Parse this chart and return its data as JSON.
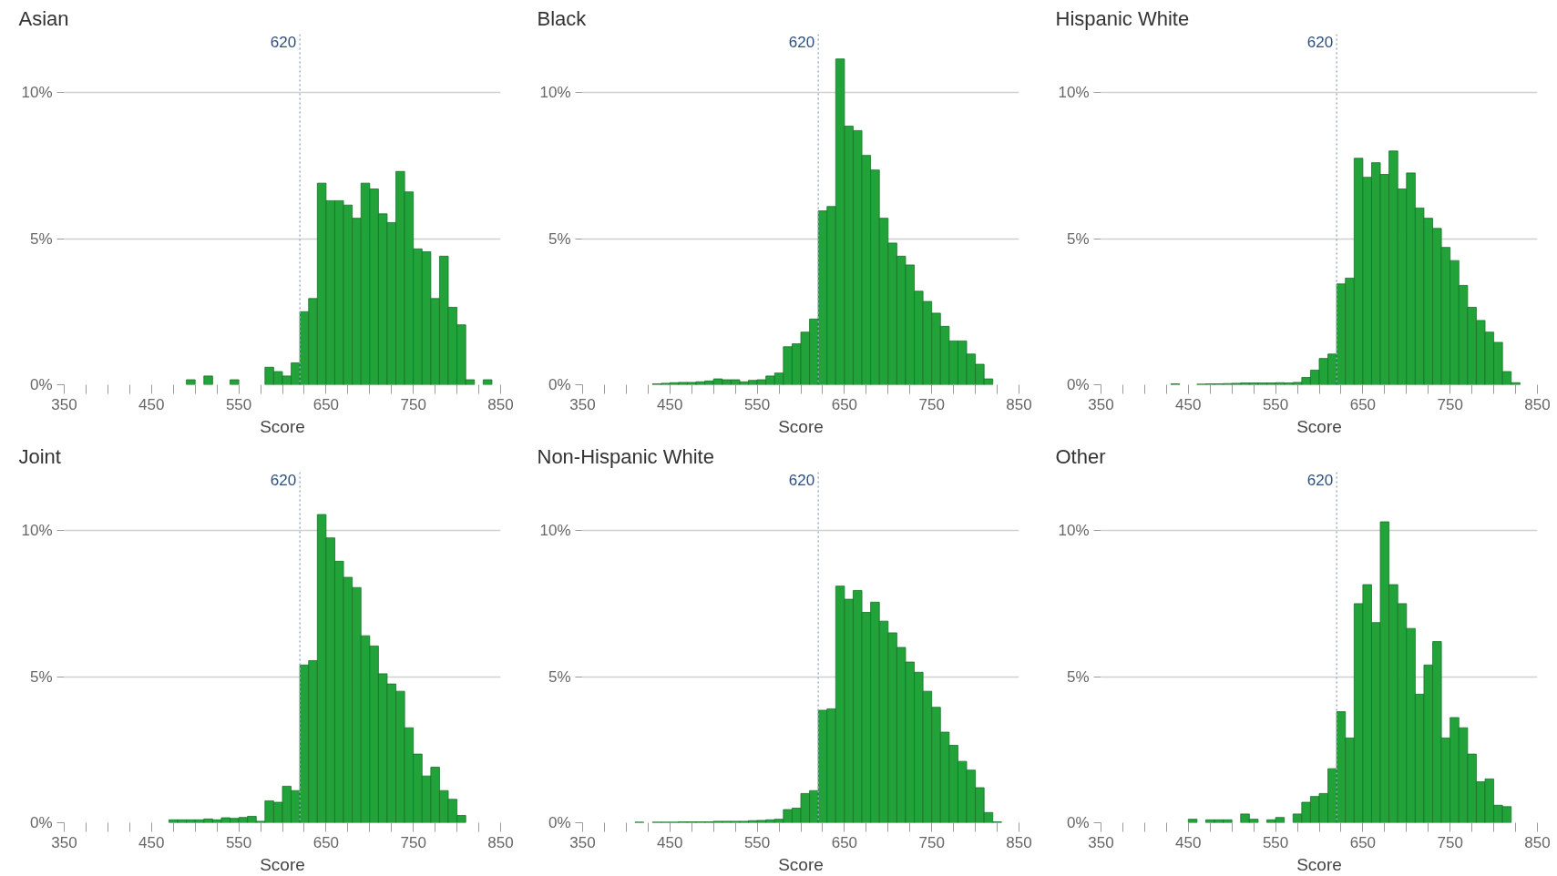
{
  "chart_data": [
    {
      "type": "histogram",
      "title": "Asian",
      "xlabel": "Score",
      "color": "#22a33a",
      "bins": [
        350,
        360,
        370,
        380,
        390,
        400,
        410,
        420,
        430,
        440,
        450,
        460,
        470,
        480,
        490,
        500,
        510,
        520,
        530,
        540,
        550,
        560,
        570,
        580,
        590,
        600,
        610,
        620,
        630,
        640,
        650,
        660,
        670,
        680,
        690,
        700,
        710,
        720,
        730,
        740,
        750,
        760,
        770,
        780,
        790,
        800,
        810,
        820,
        830,
        840,
        850
      ],
      "values": [
        0,
        0,
        0,
        0,
        0,
        0,
        0,
        0,
        0,
        0,
        0,
        0,
        0,
        0,
        0.17,
        0,
        0.3,
        0,
        0,
        0.17,
        0,
        0,
        0,
        0.6,
        0.45,
        0.3,
        0.75,
        2.5,
        2.95,
        6.9,
        6.3,
        6.3,
        6.15,
        5.7,
        6.9,
        6.7,
        5.85,
        5.55,
        7.3,
        6.6,
        4.65,
        4.55,
        2.95,
        4.4,
        2.65,
        2.05,
        0.17,
        0,
        0.17,
        0
      ],
      "xlim": [
        350,
        850
      ],
      "xticks": [
        350,
        {
          "value": 375,
          "label": null
        },
        {
          "value": 400,
          "label": null
        },
        {
          "value": 425,
          "label": null
        },
        450,
        {
          "value": 475,
          "label": null
        },
        {
          "value": 500,
          "label": null
        },
        {
          "value": 525,
          "label": null
        },
        550,
        {
          "value": 575,
          "label": null
        },
        {
          "value": 600,
          "label": null
        },
        {
          "value": 625,
          "label": null
        },
        650,
        {
          "value": 675,
          "label": null
        },
        {
          "value": 700,
          "label": null
        },
        {
          "value": 725,
          "label": null
        },
        750,
        {
          "value": 775,
          "label": null
        },
        {
          "value": 800,
          "label": null
        },
        {
          "value": 825,
          "label": null
        },
        850
      ],
      "ylim": [
        0,
        12
      ],
      "yticks": [
        {
          "value": 0,
          "label": "0%"
        },
        {
          "value": 5,
          "label": "5%"
        },
        {
          "value": 10,
          "label": "10%"
        }
      ],
      "grid": "y",
      "ref_lines": [
        {
          "axis": "x",
          "value": 620,
          "label": "620",
          "color": "#9aaccc",
          "line_style": "dotted"
        }
      ]
    },
    {
      "type": "histogram",
      "title": "Black",
      "xlabel": "Score",
      "color": "#22a33a",
      "bins": [
        350,
        360,
        370,
        380,
        390,
        400,
        410,
        420,
        430,
        440,
        450,
        460,
        470,
        480,
        490,
        500,
        510,
        520,
        530,
        540,
        550,
        560,
        570,
        580,
        590,
        600,
        610,
        620,
        630,
        640,
        650,
        660,
        670,
        680,
        690,
        700,
        710,
        720,
        730,
        740,
        750,
        760,
        770,
        780,
        790,
        800,
        810,
        820,
        830,
        840,
        850
      ],
      "values": [
        0,
        0,
        0,
        0,
        0,
        0,
        0,
        0,
        0.03,
        0.05,
        0.07,
        0.08,
        0.08,
        0.1,
        0.13,
        0.2,
        0.17,
        0.17,
        0.1,
        0.15,
        0.17,
        0.3,
        0.4,
        1.3,
        1.4,
        1.8,
        2.25,
        5.95,
        6.1,
        11.15,
        8.85,
        8.7,
        7.85,
        7.35,
        5.7,
        4.85,
        4.4,
        4.1,
        3.2,
        2.85,
        2.45,
        2.0,
        1.5,
        1.5,
        1.05,
        0.7,
        0.2,
        0,
        0,
        0
      ],
      "xlim": [
        350,
        850
      ],
      "xticks": [
        350,
        {
          "value": 375,
          "label": null
        },
        {
          "value": 400,
          "label": null
        },
        {
          "value": 425,
          "label": null
        },
        450,
        {
          "value": 475,
          "label": null
        },
        {
          "value": 500,
          "label": null
        },
        {
          "value": 525,
          "label": null
        },
        550,
        {
          "value": 575,
          "label": null
        },
        {
          "value": 600,
          "label": null
        },
        {
          "value": 625,
          "label": null
        },
        650,
        {
          "value": 675,
          "label": null
        },
        {
          "value": 700,
          "label": null
        },
        {
          "value": 725,
          "label": null
        },
        750,
        {
          "value": 775,
          "label": null
        },
        {
          "value": 800,
          "label": null
        },
        {
          "value": 825,
          "label": null
        },
        850
      ],
      "ylim": [
        0,
        12
      ],
      "yticks": [
        {
          "value": 0,
          "label": "0%"
        },
        {
          "value": 5,
          "label": "5%"
        },
        {
          "value": 10,
          "label": "10%"
        }
      ],
      "grid": "y",
      "ref_lines": [
        {
          "axis": "x",
          "value": 620,
          "label": "620",
          "color": "#9aaccc",
          "line_style": "dotted"
        }
      ]
    },
    {
      "type": "histogram",
      "title": "Hispanic White",
      "xlabel": "Score",
      "color": "#22a33a",
      "bins": [
        350,
        360,
        370,
        380,
        390,
        400,
        410,
        420,
        430,
        440,
        450,
        460,
        470,
        480,
        490,
        500,
        510,
        520,
        530,
        540,
        550,
        560,
        570,
        580,
        590,
        600,
        610,
        620,
        630,
        640,
        650,
        660,
        670,
        680,
        690,
        700,
        710,
        720,
        730,
        740,
        750,
        760,
        770,
        780,
        790,
        800,
        810,
        820,
        830,
        840,
        850
      ],
      "values": [
        0,
        0,
        0,
        0,
        0,
        0,
        0,
        0,
        0.03,
        0,
        0,
        0.02,
        0.03,
        0.03,
        0.04,
        0.05,
        0.06,
        0.06,
        0.06,
        0.06,
        0.07,
        0.06,
        0.08,
        0.25,
        0.5,
        0.9,
        1.05,
        3.45,
        3.65,
        7.75,
        7.1,
        7.6,
        7.2,
        8.0,
        6.7,
        7.25,
        6.05,
        5.7,
        5.35,
        4.7,
        4.25,
        3.4,
        2.65,
        2.2,
        1.8,
        1.45,
        0.45,
        0.07,
        0,
        0
      ],
      "xlim": [
        350,
        850
      ],
      "xticks": [
        350,
        {
          "value": 375,
          "label": null
        },
        {
          "value": 400,
          "label": null
        },
        {
          "value": 425,
          "label": null
        },
        450,
        {
          "value": 475,
          "label": null
        },
        {
          "value": 500,
          "label": null
        },
        {
          "value": 525,
          "label": null
        },
        550,
        {
          "value": 575,
          "label": null
        },
        {
          "value": 600,
          "label": null
        },
        {
          "value": 625,
          "label": null
        },
        650,
        {
          "value": 675,
          "label": null
        },
        {
          "value": 700,
          "label": null
        },
        {
          "value": 725,
          "label": null
        },
        750,
        {
          "value": 775,
          "label": null
        },
        {
          "value": 800,
          "label": null
        },
        {
          "value": 825,
          "label": null
        },
        850
      ],
      "ylim": [
        0,
        12
      ],
      "yticks": [
        {
          "value": 0,
          "label": "0%"
        },
        {
          "value": 5,
          "label": "5%"
        },
        {
          "value": 10,
          "label": "10%"
        }
      ],
      "grid": "y",
      "ref_lines": [
        {
          "axis": "x",
          "value": 620,
          "label": "620",
          "color": "#9aaccc",
          "line_style": "dotted"
        }
      ]
    },
    {
      "type": "histogram",
      "title": "Joint",
      "xlabel": "Score",
      "color": "#22a33a",
      "bins": [
        350,
        360,
        370,
        380,
        390,
        400,
        410,
        420,
        430,
        440,
        450,
        460,
        470,
        480,
        490,
        500,
        510,
        520,
        530,
        540,
        550,
        560,
        570,
        580,
        590,
        600,
        610,
        620,
        630,
        640,
        650,
        660,
        670,
        680,
        690,
        700,
        710,
        720,
        730,
        740,
        750,
        760,
        770,
        780,
        790,
        800,
        810,
        820,
        830,
        840,
        850
      ],
      "values": [
        0,
        0,
        0,
        0,
        0,
        0,
        0,
        0,
        0,
        0,
        0,
        0,
        0.1,
        0.1,
        0.1,
        0.1,
        0.13,
        0.1,
        0.17,
        0.15,
        0.18,
        0.22,
        0.05,
        0.75,
        0.7,
        1.25,
        1.1,
        5.4,
        5.55,
        10.55,
        9.75,
        8.95,
        8.4,
        8.05,
        6.4,
        6.05,
        5.1,
        4.75,
        4.5,
        3.25,
        2.35,
        1.6,
        1.9,
        1.1,
        0.8,
        0.25,
        0,
        0,
        0,
        0
      ],
      "xlim": [
        350,
        850
      ],
      "xticks": [
        350,
        {
          "value": 375,
          "label": null
        },
        {
          "value": 400,
          "label": null
        },
        {
          "value": 425,
          "label": null
        },
        450,
        {
          "value": 475,
          "label": null
        },
        {
          "value": 500,
          "label": null
        },
        {
          "value": 525,
          "label": null
        },
        550,
        {
          "value": 575,
          "label": null
        },
        {
          "value": 600,
          "label": null
        },
        {
          "value": 625,
          "label": null
        },
        650,
        {
          "value": 675,
          "label": null
        },
        {
          "value": 700,
          "label": null
        },
        {
          "value": 725,
          "label": null
        },
        750,
        {
          "value": 775,
          "label": null
        },
        {
          "value": 800,
          "label": null
        },
        {
          "value": 825,
          "label": null
        },
        850
      ],
      "ylim": [
        0,
        12
      ],
      "yticks": [
        {
          "value": 0,
          "label": "0%"
        },
        {
          "value": 5,
          "label": "5%"
        },
        {
          "value": 10,
          "label": "10%"
        }
      ],
      "grid": "y",
      "ref_lines": [
        {
          "axis": "x",
          "value": 620,
          "label": "620",
          "color": "#9aaccc",
          "line_style": "dotted"
        }
      ]
    },
    {
      "type": "histogram",
      "title": "Non-Hispanic White",
      "xlabel": "Score",
      "color": "#22a33a",
      "bins": [
        350,
        360,
        370,
        380,
        390,
        400,
        410,
        420,
        430,
        440,
        450,
        460,
        470,
        480,
        490,
        500,
        510,
        520,
        530,
        540,
        550,
        560,
        570,
        580,
        590,
        600,
        610,
        620,
        630,
        640,
        650,
        660,
        670,
        680,
        690,
        700,
        710,
        720,
        730,
        740,
        750,
        760,
        770,
        780,
        790,
        800,
        810,
        820,
        830,
        840,
        850
      ],
      "values": [
        0,
        0,
        0,
        0,
        0,
        0,
        0.02,
        0,
        0.02,
        0.02,
        0.02,
        0.03,
        0.03,
        0.03,
        0.03,
        0.05,
        0.05,
        0.05,
        0.05,
        0.07,
        0.08,
        0.1,
        0.12,
        0.45,
        0.5,
        1.0,
        1.1,
        3.85,
        3.9,
        8.1,
        7.65,
        7.95,
        7.2,
        7.55,
        6.9,
        6.5,
        6.0,
        5.5,
        5.15,
        4.5,
        3.95,
        3.1,
        2.65,
        2.1,
        1.8,
        1.2,
        0.35,
        0.03,
        0,
        0
      ],
      "xlim": [
        350,
        850
      ],
      "xticks": [
        350,
        {
          "value": 375,
          "label": null
        },
        {
          "value": 400,
          "label": null
        },
        {
          "value": 425,
          "label": null
        },
        450,
        {
          "value": 475,
          "label": null
        },
        {
          "value": 500,
          "label": null
        },
        {
          "value": 525,
          "label": null
        },
        550,
        {
          "value": 575,
          "label": null
        },
        {
          "value": 600,
          "label": null
        },
        {
          "value": 625,
          "label": null
        },
        650,
        {
          "value": 675,
          "label": null
        },
        {
          "value": 700,
          "label": null
        },
        {
          "value": 725,
          "label": null
        },
        750,
        {
          "value": 775,
          "label": null
        },
        {
          "value": 800,
          "label": null
        },
        {
          "value": 825,
          "label": null
        },
        850
      ],
      "ylim": [
        0,
        12
      ],
      "yticks": [
        {
          "value": 0,
          "label": "0%"
        },
        {
          "value": 5,
          "label": "5%"
        },
        {
          "value": 10,
          "label": "10%"
        }
      ],
      "grid": "y",
      "ref_lines": [
        {
          "axis": "x",
          "value": 620,
          "label": "620",
          "color": "#9aaccc",
          "line_style": "dotted"
        }
      ]
    },
    {
      "type": "histogram",
      "title": "Other",
      "xlabel": "Score",
      "color": "#22a33a",
      "bins": [
        350,
        360,
        370,
        380,
        390,
        400,
        410,
        420,
        430,
        440,
        450,
        460,
        470,
        480,
        490,
        500,
        510,
        520,
        530,
        540,
        550,
        560,
        570,
        580,
        590,
        600,
        610,
        620,
        630,
        640,
        650,
        660,
        670,
        680,
        690,
        700,
        710,
        720,
        730,
        740,
        750,
        760,
        770,
        780,
        790,
        800,
        810,
        820,
        830,
        840,
        850
      ],
      "values": [
        0,
        0,
        0,
        0,
        0,
        0,
        0,
        0,
        0,
        0,
        0.12,
        0,
        0.1,
        0.1,
        0.1,
        0,
        0.3,
        0.12,
        0,
        0.1,
        0.18,
        0,
        0.3,
        0.7,
        0.9,
        1.0,
        1.85,
        3.8,
        2.9,
        7.5,
        8.15,
        6.85,
        10.3,
        8.15,
        7.5,
        6.65,
        4.4,
        5.4,
        6.2,
        2.9,
        3.6,
        3.25,
        2.35,
        1.4,
        1.5,
        0.6,
        0.55,
        0,
        0,
        0
      ],
      "xlim": [
        350,
        850
      ],
      "xticks": [
        350,
        {
          "value": 375,
          "label": null
        },
        {
          "value": 400,
          "label": null
        },
        {
          "value": 425,
          "label": null
        },
        450,
        {
          "value": 475,
          "label": null
        },
        {
          "value": 500,
          "label": null
        },
        {
          "value": 525,
          "label": null
        },
        550,
        {
          "value": 575,
          "label": null
        },
        {
          "value": 600,
          "label": null
        },
        {
          "value": 625,
          "label": null
        },
        650,
        {
          "value": 675,
          "label": null
        },
        {
          "value": 700,
          "label": null
        },
        {
          "value": 725,
          "label": null
        },
        750,
        {
          "value": 775,
          "label": null
        },
        {
          "value": 800,
          "label": null
        },
        {
          "value": 825,
          "label": null
        },
        850
      ],
      "ylim": [
        0,
        12
      ],
      "yticks": [
        {
          "value": 0,
          "label": "0%"
        },
        {
          "value": 5,
          "label": "5%"
        },
        {
          "value": 10,
          "label": "10%"
        }
      ],
      "grid": "y",
      "ref_lines": [
        {
          "axis": "x",
          "value": 620,
          "label": "620",
          "color": "#9aaccc",
          "line_style": "dotted"
        }
      ]
    }
  ]
}
